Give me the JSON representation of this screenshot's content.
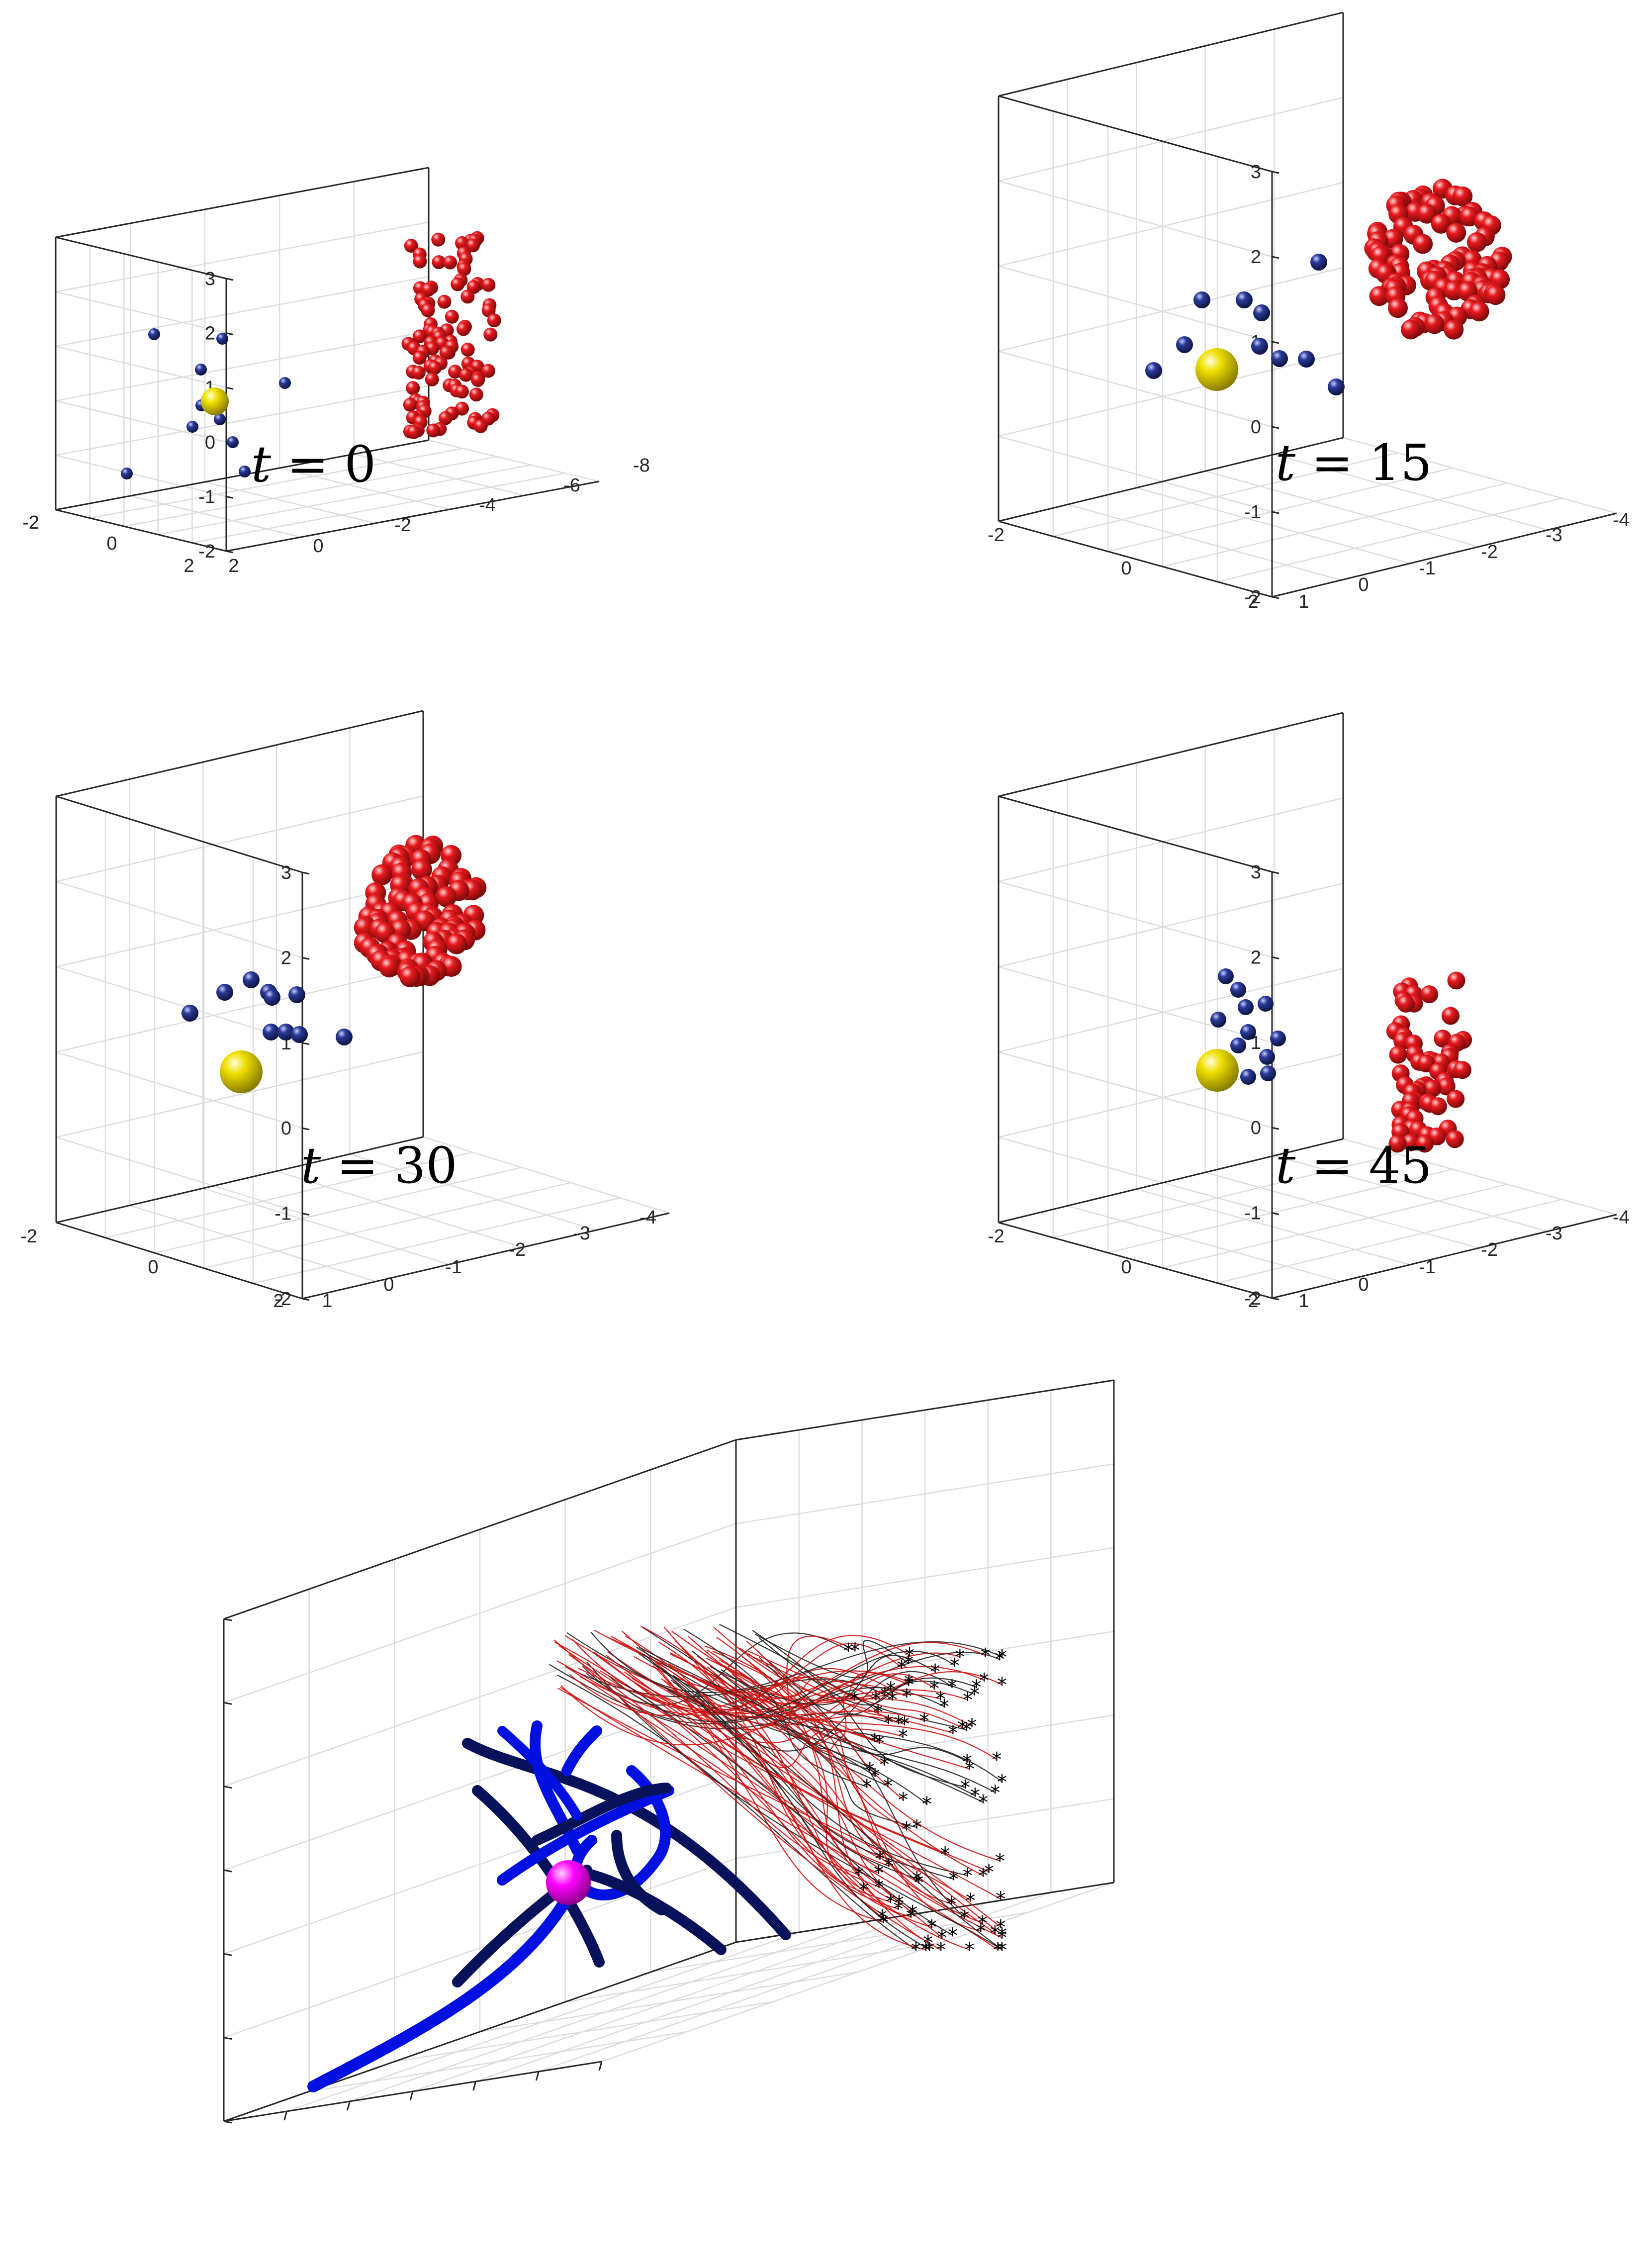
{
  "figure": {
    "panels": [
      {
        "id": "p0",
        "label_var": "t",
        "label_eq": " = 0",
        "z_ticks": [
          "3",
          "2",
          "1",
          "0",
          "-1",
          "-2"
        ],
        "x_ticks": [
          "-2",
          "0",
          "2"
        ],
        "y_ticks": [
          "2",
          "0",
          "-2",
          "-4",
          "-6",
          "-8"
        ]
      },
      {
        "id": "p15",
        "label_var": "t",
        "label_eq": " = 15",
        "z_ticks": [
          "3",
          "2",
          "1",
          "0",
          "-1",
          "-2"
        ],
        "x_ticks": [
          "-2",
          "0",
          "2"
        ],
        "y_ticks": [
          "1",
          "0",
          "-1",
          "-2",
          "-3",
          "-4"
        ]
      },
      {
        "id": "p30",
        "label_var": "t",
        "label_eq": " = 30",
        "z_ticks": [
          "3",
          "2",
          "1",
          "0",
          "-1",
          "-2"
        ],
        "x_ticks": [
          "-2",
          "0",
          "2"
        ],
        "y_ticks": [
          "1",
          "0",
          "-1",
          "-2",
          "-3",
          "-4"
        ]
      },
      {
        "id": "p45",
        "label_var": "t",
        "label_eq": " = 45",
        "z_ticks": [
          "3",
          "2",
          "1",
          "0",
          "-1",
          "-2"
        ],
        "x_ticks": [
          "-2",
          "0",
          "2"
        ],
        "y_ticks": [
          "1",
          "0",
          "-1",
          "-2",
          "-3",
          "-4"
        ]
      }
    ],
    "colors": {
      "red_agents": "#e8191e",
      "blue_agents": "#2a3a9a",
      "leader": "#f0e000",
      "trajectory_blue": "#0010e0",
      "trajectory_dark": "#08125a",
      "trajectory_red": "#d01010",
      "trajectory_black": "#222222",
      "leader_traj": "#ff00ff",
      "box": "#262626",
      "grid": "#dcdcdc"
    }
  },
  "chart_data": [
    {
      "type": "scatter",
      "panel": "t = 0",
      "ylim": [
        -8,
        2
      ],
      "xlim": [
        -2,
        2
      ],
      "zlim": [
        -2,
        3
      ],
      "series": [
        {
          "n": 100,
          "centroid": [
            0,
            -5.5,
            1
          ]
        },
        {
          "n": 11,
          "centroid": [
            0,
            1,
            0
          ]
        },
        {
          "n": 1,
          "centroid": [
            0,
            1,
            0
          ]
        }
      ]
    },
    {
      "type": "scatter",
      "panel": "t = 15",
      "ylim": [
        -4,
        1
      ],
      "xlim": [
        -2,
        2
      ],
      "zlim": [
        -2,
        3
      ],
      "series": [
        {
          "n": 100,
          "centroid": [
            0,
            -3,
            1.3
          ]
        },
        {
          "n": 11,
          "centroid": [
            0,
            0,
            0.4
          ]
        },
        {
          "n": 1,
          "centroid": [
            0,
            0,
            0
          ]
        }
      ]
    },
    {
      "type": "scatter",
      "panel": "t = 30",
      "ylim": [
        -4,
        1
      ],
      "xlim": [
        -2,
        2
      ],
      "zlim": [
        -2,
        3
      ],
      "series": [
        {
          "n": 100,
          "centroid": [
            0,
            -1.5,
            1.8
          ]
        },
        {
          "n": 11,
          "centroid": [
            0,
            0.3,
            0.5
          ]
        },
        {
          "n": 1,
          "centroid": [
            0,
            0,
            0
          ]
        }
      ]
    },
    {
      "type": "scatter",
      "panel": "t = 45",
      "ylim": [
        -4,
        1
      ],
      "xlim": [
        -2,
        2
      ],
      "zlim": [
        -2,
        3
      ],
      "series": [
        {
          "n": 60,
          "centroid": [
            0,
            -3,
            0.6
          ]
        },
        {
          "n": 11,
          "centroid": [
            0,
            0,
            0.6
          ]
        },
        {
          "n": 1,
          "centroid": [
            0,
            0,
            0
          ]
        }
      ]
    },
    {
      "type": "line",
      "panel": "bottom",
      "series": [
        {
          "n_tracks": 12
        },
        {
          "n_tracks": 100
        }
      ]
    }
  ]
}
